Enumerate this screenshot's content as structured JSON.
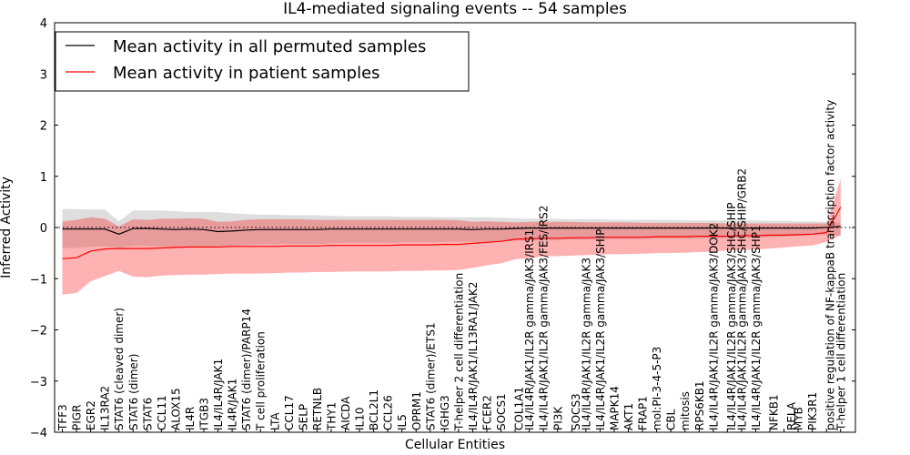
{
  "chart_data": {
    "type": "line",
    "title": "IL4-mediated signaling events -- 54 samples",
    "xlabel": "Cellular Entities",
    "ylabel": "Inferred Activity",
    "ylim": [
      -4,
      4
    ],
    "yticks": [
      -4,
      -3,
      -2,
      -1,
      0,
      1,
      2,
      3,
      4
    ],
    "yticklabels": [
      "−4",
      "−3",
      "−2",
      "−1",
      "0",
      "1",
      "2",
      "3",
      "4"
    ],
    "legend_location": "top-left",
    "categories": [
      "TFF3",
      "PIGR",
      "EGR2",
      "IL13RA2",
      "STAT6 (cleaved dimer)",
      "STAT6 (dimer)",
      "STAT6",
      "CCL11",
      "ALOX15",
      "IL4R",
      "ITGB3",
      "IL4/IL4R/JAK1",
      "IL4R/JAK1",
      "STAT6 (dimer)/PARP14",
      "T cell proliferation",
      "LTA",
      "CCL17",
      "SELP",
      "RETNLB",
      "THY1",
      "AICDA",
      "IL10",
      "BCL2L1",
      "CCL26",
      "IL5",
      "OPRM1",
      "STAT6 (dimer)/ETS1",
      "IGHG3",
      "T-helper 2 cell differentiation",
      "IL4/IL4R/JAK1/IL13RA1/JAK2",
      "FCER2",
      "SOCS1",
      "COL1A1",
      "IL4/IL4R/JAK1/IL2R gamma/JAK3/IRS1",
      "IL4/IL4R/JAK1/IL2R gamma/JAK3/FES/IRS2",
      "PI3K",
      "SOCS3",
      "IL4/IL4R/JAK1/IL2R gamma/JAK3",
      "IL4/IL4R/JAK1/IL2R gamma/JAK3/SHIP",
      "MAPK14",
      "AKT1",
      "FRAP1",
      "mol:PI-3-4-5-P3",
      "CBL",
      "mitosis",
      "RPS6KB1",
      "IL4/IL4R/JAK1/IL2R gamma/JAK3/DOK2",
      "IL4/IL4R/JAK1/IL2R gamma/JAK3/SHC/SHIP",
      "IL4/IL4R/JAK1/IL2R gamma/JAK3/SHC/SHIP/GRB2",
      "IL4/IL4R/JAK1/IL2R gamma/JAK3/SHP1",
      "NFKB1",
      "RELA",
      "MYB",
      "PIK3R1",
      "positive regulation of NF-kappaB transcription factor activity",
      "T-helper 1 cell differentiation"
    ],
    "label_rows": [
      0,
      0,
      0,
      0,
      0,
      0,
      0,
      0,
      0,
      0,
      0,
      0,
      0,
      0,
      0,
      0,
      0,
      0,
      0,
      0,
      0,
      0,
      0,
      0,
      0,
      0,
      0,
      0,
      0,
      0,
      0,
      0,
      1,
      0,
      0,
      0,
      1,
      0,
      0,
      0,
      0,
      0,
      0,
      0,
      0,
      0,
      0,
      1,
      0,
      0,
      1,
      2,
      0,
      0,
      1,
      0
    ],
    "series": [
      {
        "name": "Mean activity in all permuted samples",
        "color": "#000000",
        "values": [
          -0.03,
          -0.03,
          -0.03,
          -0.03,
          -0.13,
          -0.02,
          -0.02,
          -0.03,
          -0.04,
          -0.03,
          -0.04,
          -0.08,
          -0.07,
          -0.05,
          -0.04,
          -0.04,
          -0.04,
          -0.04,
          -0.04,
          -0.03,
          -0.03,
          -0.03,
          -0.03,
          -0.03,
          -0.03,
          -0.03,
          -0.03,
          -0.03,
          -0.03,
          -0.04,
          -0.03,
          -0.03,
          -0.02,
          -0.01,
          -0.01,
          -0.01,
          -0.01,
          -0.01,
          -0.01,
          -0.01,
          -0.01,
          -0.01,
          -0.01,
          -0.01,
          -0.01,
          -0.01,
          -0.01,
          -0.01,
          -0.01,
          -0.01,
          -0.01,
          -0.01,
          -0.01,
          -0.01,
          0.0,
          0.02
        ],
        "band_upper": [
          0.36,
          0.36,
          0.35,
          0.35,
          0.12,
          0.33,
          0.33,
          0.33,
          0.32,
          0.3,
          0.3,
          0.3,
          0.28,
          0.26,
          0.25,
          0.25,
          0.24,
          0.24,
          0.24,
          0.23,
          0.22,
          0.22,
          0.22,
          0.22,
          0.21,
          0.21,
          0.21,
          0.2,
          0.2,
          0.2,
          0.2,
          0.19,
          0.18,
          0.17,
          0.17,
          0.17,
          0.16,
          0.16,
          0.16,
          0.15,
          0.15,
          0.15,
          0.15,
          0.15,
          0.14,
          0.14,
          0.14,
          0.14,
          0.14,
          0.14,
          0.13,
          0.13,
          0.12,
          0.12,
          0.11,
          0.1
        ],
        "band_lower": [
          -0.4,
          -0.4,
          -0.38,
          -0.37,
          -0.4,
          -0.36,
          -0.36,
          -0.37,
          -0.38,
          -0.36,
          -0.36,
          -0.36,
          -0.36,
          -0.34,
          -0.33,
          -0.33,
          -0.32,
          -0.32,
          -0.32,
          -0.31,
          -0.3,
          -0.3,
          -0.3,
          -0.3,
          -0.29,
          -0.29,
          -0.29,
          -0.28,
          -0.28,
          -0.28,
          -0.28,
          -0.27,
          -0.26,
          -0.25,
          -0.25,
          -0.25,
          -0.24,
          -0.24,
          -0.24,
          -0.23,
          -0.23,
          -0.23,
          -0.22,
          -0.22,
          -0.22,
          -0.21,
          -0.21,
          -0.21,
          -0.2,
          -0.2,
          -0.19,
          -0.18,
          -0.16,
          -0.15,
          -0.14,
          -0.16
        ]
      },
      {
        "name": "Mean activity in patient samples",
        "color": "#ff0000",
        "values": [
          -0.61,
          -0.59,
          -0.46,
          -0.42,
          -0.41,
          -0.41,
          -0.41,
          -0.4,
          -0.39,
          -0.38,
          -0.38,
          -0.38,
          -0.37,
          -0.37,
          -0.37,
          -0.37,
          -0.36,
          -0.36,
          -0.36,
          -0.35,
          -0.35,
          -0.35,
          -0.35,
          -0.35,
          -0.34,
          -0.34,
          -0.34,
          -0.33,
          -0.33,
          -0.31,
          -0.29,
          -0.27,
          -0.23,
          -0.22,
          -0.21,
          -0.21,
          -0.2,
          -0.2,
          -0.19,
          -0.19,
          -0.19,
          -0.19,
          -0.18,
          -0.18,
          -0.18,
          -0.17,
          -0.17,
          -0.17,
          -0.16,
          -0.16,
          -0.15,
          -0.15,
          -0.14,
          -0.13,
          -0.1,
          0.4
        ],
        "band_upper": [
          0.12,
          0.15,
          0.2,
          0.17,
          0.02,
          0.16,
          0.15,
          0.17,
          0.17,
          0.18,
          0.17,
          0.11,
          0.12,
          0.15,
          0.16,
          0.16,
          0.16,
          0.16,
          0.15,
          0.15,
          0.15,
          0.15,
          0.15,
          0.15,
          0.15,
          0.15,
          0.15,
          0.15,
          0.14,
          0.11,
          0.12,
          0.11,
          0.1,
          0.11,
          0.11,
          0.11,
          0.11,
          0.1,
          0.1,
          0.1,
          0.1,
          0.09,
          0.09,
          0.09,
          0.09,
          0.09,
          0.09,
          0.08,
          0.08,
          0.08,
          0.08,
          0.08,
          0.08,
          0.08,
          0.08,
          0.95
        ],
        "band_lower": [
          -1.31,
          -1.28,
          -1.05,
          -0.95,
          -0.85,
          -0.96,
          -0.97,
          -0.94,
          -0.93,
          -0.92,
          -0.92,
          -0.91,
          -0.9,
          -0.9,
          -0.9,
          -0.89,
          -0.88,
          -0.88,
          -0.87,
          -0.87,
          -0.86,
          -0.86,
          -0.86,
          -0.86,
          -0.85,
          -0.85,
          -0.84,
          -0.84,
          -0.83,
          -0.79,
          -0.74,
          -0.7,
          -0.62,
          -0.6,
          -0.56,
          -0.56,
          -0.55,
          -0.54,
          -0.53,
          -0.52,
          -0.52,
          -0.51,
          -0.5,
          -0.5,
          -0.49,
          -0.48,
          -0.47,
          -0.45,
          -0.44,
          -0.43,
          -0.41,
          -0.39,
          -0.37,
          -0.35,
          -0.28,
          -0.15
        ]
      }
    ]
  }
}
